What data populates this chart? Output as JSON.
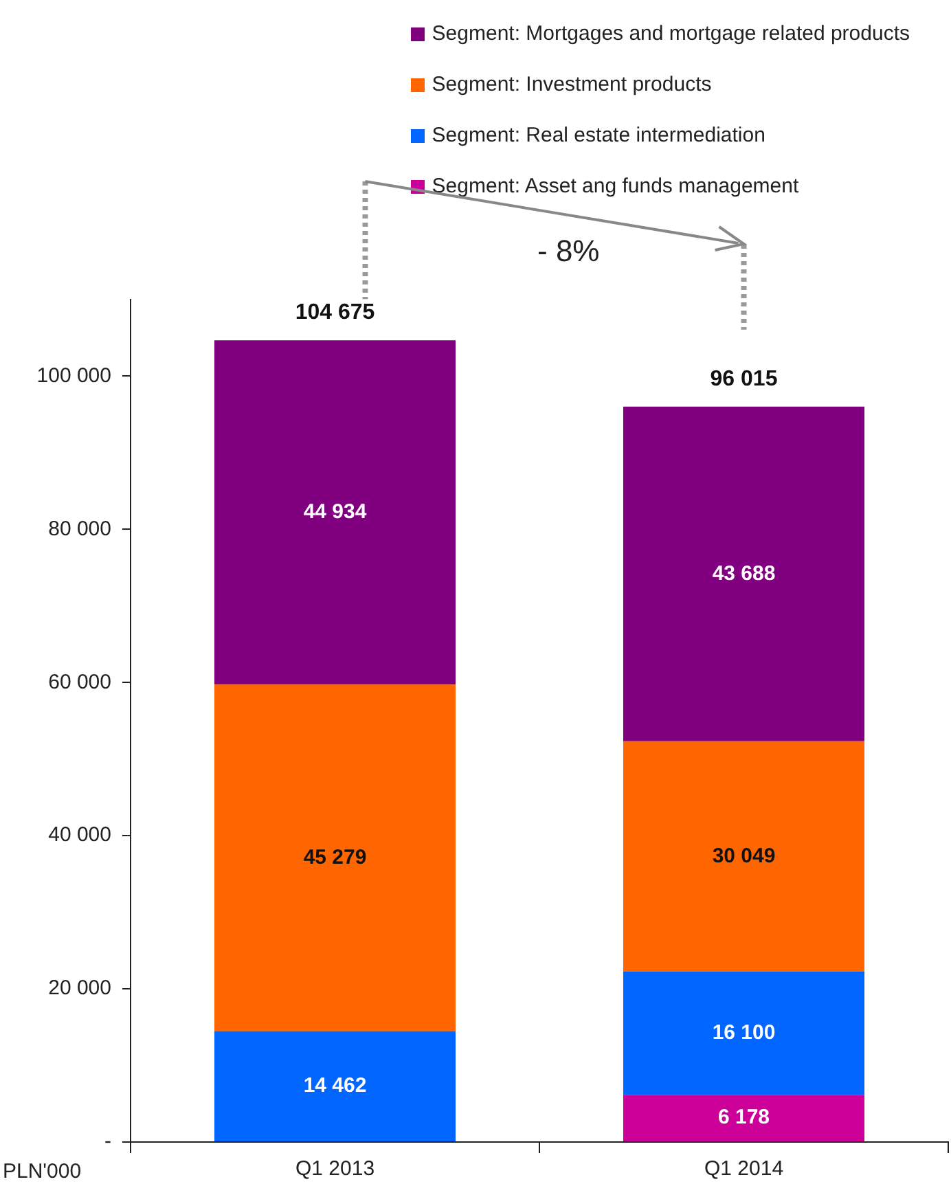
{
  "chart_data": {
    "type": "bar",
    "stacked": true,
    "categories": [
      "Q1 2013",
      "Q1 2014"
    ],
    "series": [
      {
        "name": "Segment: Asset ang funds management",
        "color": "#cc0099",
        "values": [
          0,
          6178
        ],
        "value_labels": [
          null,
          "6 178"
        ]
      },
      {
        "name": "Segment: Real estate intermediation",
        "color": "#0066ff",
        "values": [
          14462,
          16100
        ],
        "value_labels": [
          "14 462",
          "16 100"
        ]
      },
      {
        "name": "Segment: Investment products",
        "color": "#ff6600",
        "values": [
          45279,
          30049
        ],
        "value_labels": [
          "45 279",
          "30 049"
        ]
      },
      {
        "name": "Segment: Mortgages and mortgage related products",
        "color": "#800080",
        "values": [
          44934,
          43688
        ],
        "value_labels": [
          "44 934",
          "43 688"
        ]
      }
    ],
    "totals": [
      "104 675",
      "96 015"
    ],
    "ylabel": "PLN'000",
    "ylim": [
      0,
      110000
    ],
    "yticks": [
      {
        "value": 0,
        "label": "-"
      },
      {
        "value": 20000,
        "label": "20 000"
      },
      {
        "value": 40000,
        "label": "40 000"
      },
      {
        "value": 60000,
        "label": "60 000"
      },
      {
        "value": 80000,
        "label": "80 000"
      },
      {
        "value": 100000,
        "label": "100 000"
      }
    ],
    "annotations": [
      "- 8%"
    ],
    "legend": "top right"
  }
}
